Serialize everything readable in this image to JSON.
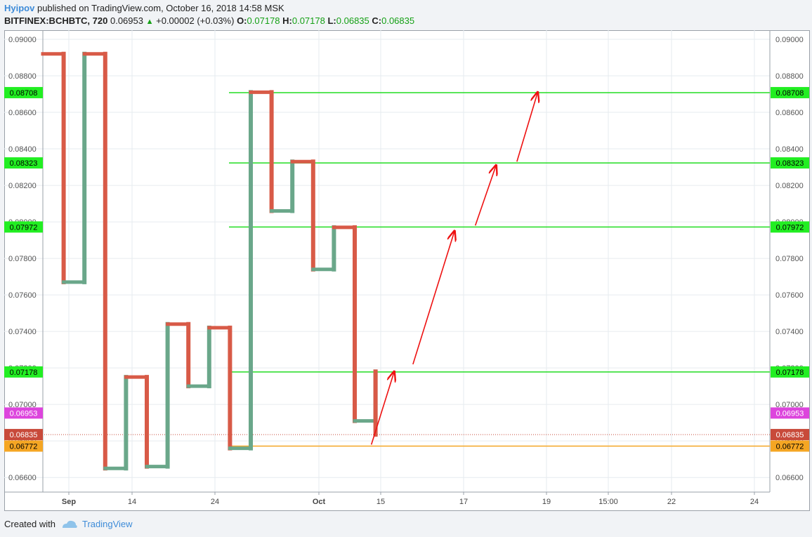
{
  "header": {
    "author": "Hyipov",
    "published": "published on TradingView.com, October 16, 2018 14:58 MSK",
    "symbol": "BITFINEX:BCHBTC, 720",
    "last_price": "0.06953",
    "up_arrow": "▲",
    "change": "+0.00002 (+0.03%)",
    "open_label": "O:",
    "open": "0.07178",
    "high_label": "H:",
    "high": "0.07178",
    "low_label": "L:",
    "low": "0.06835",
    "close_label": "C:",
    "close": "0.06835"
  },
  "footer": {
    "created_with": "Created with",
    "brand": "TradingView",
    "logo_icon": "tradingview-cloud-icon"
  },
  "colors": {
    "up": "#6aa78a",
    "down": "#d85a47",
    "level": "#22dd22",
    "level_label": "#22ee22",
    "support": "#f5a623",
    "current": "#dd44dd",
    "last": "#c84a3a",
    "arrow": "#ee1111",
    "grid": "#e6ebef"
  },
  "chart_data": {
    "type": "line",
    "style": "kagi",
    "ylim": [
      0.0652,
      0.0905
    ],
    "yticks": [
      "0.06600",
      "0.06800",
      "0.07000",
      "0.07200",
      "0.07400",
      "0.07600",
      "0.07800",
      "0.08000",
      "0.08200",
      "0.08400",
      "0.08600",
      "0.08800",
      "0.09000"
    ],
    "xticks": [
      "Sep",
      "14",
      "24",
      "Oct",
      "15",
      "17",
      "19",
      "15:00",
      "22",
      "24"
    ],
    "grid": true,
    "kagi": [
      {
        "price": 0.0892,
        "col": 0
      },
      {
        "price": 0.0767,
        "col": 1
      },
      {
        "price": 0.0892,
        "col": 2
      },
      {
        "price": 0.0665,
        "col": 3
      },
      {
        "price": 0.0715,
        "col": 4
      },
      {
        "price": 0.0666,
        "col": 5
      },
      {
        "price": 0.0744,
        "col": 6
      },
      {
        "price": 0.071,
        "col": 7
      },
      {
        "price": 0.0742,
        "col": 8
      },
      {
        "price": 0.0676,
        "col": 9
      },
      {
        "price": 0.0871,
        "col": 10
      },
      {
        "price": 0.0806,
        "col": 11
      },
      {
        "price": 0.0833,
        "col": 12
      },
      {
        "price": 0.0774,
        "col": 13
      },
      {
        "price": 0.0797,
        "col": 14
      },
      {
        "price": 0.0691,
        "col": 15
      },
      {
        "price": 0.0718,
        "col": 16
      },
      {
        "price": 0.06835,
        "col": 16
      }
    ],
    "levels": [
      {
        "price": 0.08708,
        "label": "0.08708",
        "type": "resistance"
      },
      {
        "price": 0.08323,
        "label": "0.08323",
        "type": "resistance"
      },
      {
        "price": 0.07972,
        "label": "0.07972",
        "type": "resistance"
      },
      {
        "price": 0.07178,
        "label": "0.07178",
        "type": "resistance"
      },
      {
        "price": 0.06772,
        "label": "0.06772",
        "type": "support"
      }
    ],
    "current": {
      "price": 0.06953,
      "label": "0.06953"
    },
    "last": {
      "price": 0.06835,
      "label": "0.06835"
    },
    "arrows": [
      {
        "from": [
          0.0678,
          15.8
        ],
        "to": [
          0.0718,
          16.9
        ]
      },
      {
        "from": [
          0.0722,
          17.8
        ],
        "to": [
          0.0795,
          19.8
        ]
      },
      {
        "from": [
          0.0798,
          20.8
        ],
        "to": [
          0.0831,
          21.8
        ]
      },
      {
        "from": [
          0.0833,
          22.8
        ],
        "to": [
          0.0871,
          23.8
        ]
      }
    ]
  }
}
